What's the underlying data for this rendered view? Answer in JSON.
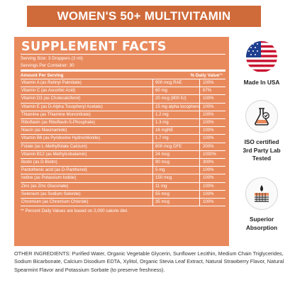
{
  "banner": {
    "title": "WOMEN'S 50+ MULTIVITAMIN"
  },
  "facts": {
    "title": "SUPPLEMENT FACTS",
    "serving_size": "Serving Size: 3 Droppers (3 ml)",
    "servings_per_container": "Servings Per Container: 30",
    "amount_header": "Amount Per Serving",
    "dv_header": "% Daily Value",
    "dv_marker": "**",
    "rows": [
      {
        "name": "Vitamin A (as Retinyl Palmitate)",
        "amount": "900 mcg RAE",
        "dv": "100%"
      },
      {
        "name": "Vitamin C (as Ascorbic Acid)",
        "amount": "60 mg",
        "dv": "67%"
      },
      {
        "name": "Vitamin D3 (as Cholecalciferol)",
        "amount": "20 mcg (800 IU)",
        "dv": "100%"
      },
      {
        "name": "Vitamin E (as D-Alpha Tocopheryl Acetate)",
        "amount": "15 mg alpha tocopherol",
        "dv": "100%"
      },
      {
        "name": "Thiamine (as Thiamine Mononitrate)",
        "amount": "1.2 mg",
        "dv": "100%"
      },
      {
        "name": "Riboflavin (as Riboflavin-5-Phosphate)",
        "amount": "1.3 mg",
        "dv": "100%"
      },
      {
        "name": "Niacin (as Niacinamide)",
        "amount": "16 mgNE",
        "dv": "100%"
      },
      {
        "name": "Vitamin B6 (as Pyridoxine Hydrochloride)",
        "amount": "1.7 mg",
        "dv": "100%"
      },
      {
        "name": "Folate (as L-Methylfolate Calcium)",
        "amount": "800 mcg DFE",
        "dv": "200%"
      },
      {
        "name": "Vitamin B12 (as Methylcobalamin)",
        "amount": "24 mcg",
        "dv": "1000%"
      },
      {
        "name": "Biotin (as D-Biotin)",
        "amount": "90 mcg",
        "dv": "300%"
      },
      {
        "name": "Pantothenic acid (as D-Panthenol)",
        "amount": "5 mg",
        "dv": "100%"
      },
      {
        "name": "Iodine (as Potassium Iodide)",
        "amount": "150 mcg",
        "dv": "100%"
      },
      {
        "name": "Zinc (as Zinc Gluconate)",
        "amount": "11 mg",
        "dv": "100%"
      },
      {
        "name": "Selenium (as Sodium Selenite)",
        "amount": "55 mcg",
        "dv": "100%"
      },
      {
        "name": "Chromium (as Chromium Chloride)",
        "amount": "35 mcg",
        "dv": "100%"
      }
    ],
    "footnote": "** Percent Daily Values are based on 2,000 calorie diet."
  },
  "ingredients": "OTHER INGREDIENTS: Purified Water, Organic Vegetable Glycerin, Sunflower Lecithin, Medium Chain Triglycerides, Sodium Bicarbonate, Calcium Disodium EDTA, Xylitol, Organic Stevia Leaf Extract, Natural Strawberry Flavor, Natural Spearmint Flavor and Potassium Sorbate (to preserve freshness).",
  "badges": {
    "usa_label": "Made In USA",
    "iso_line1": "ISO certified",
    "iso_line2": "3rd Party Lab",
    "iso_line3": "Tested",
    "absorption_line1": "Superior",
    "absorption_line2": "Absorption"
  },
  "colors": {
    "banner": "#cf6a3a",
    "panel": "#e98a5d",
    "text_dark": "#222222"
  }
}
